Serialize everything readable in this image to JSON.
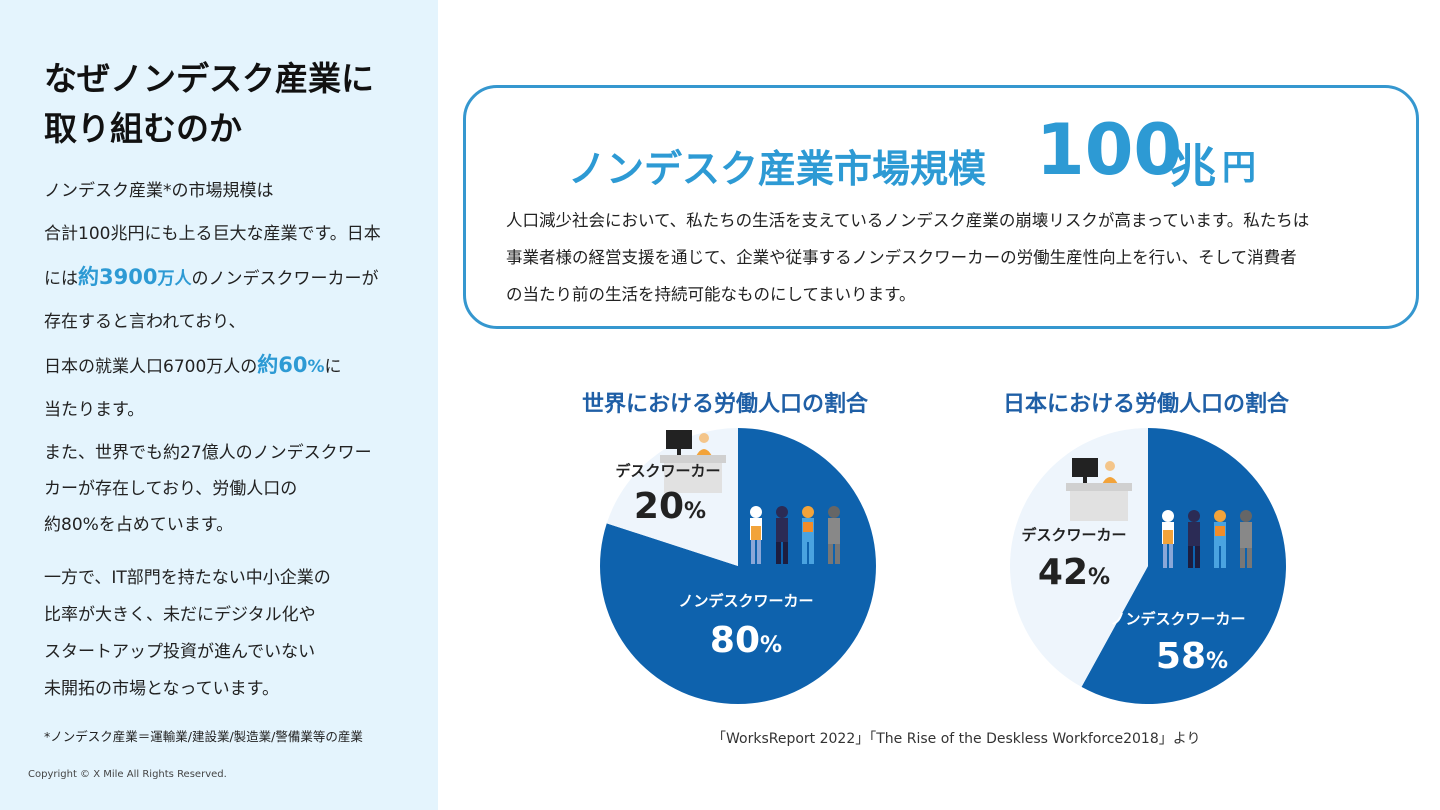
{
  "sidebar": {
    "title_line1": "なぜノンデスク産業に",
    "title_line2": "取り組むのか",
    "p1_lines": [
      {
        "pre": "ノンデスク産業*の市場規模は"
      },
      {
        "pre": "合計100兆円にも上る巨大な産業です。日本"
      },
      {
        "pre": "には",
        "hl": "約3900",
        "hl_small": "万人",
        "post": "のノンデスクワーカーが"
      },
      {
        "pre": "存在すると言われており、"
      },
      {
        "pre": "日本の就業人口6700万人の",
        "hl": "約60",
        "hl_small": "%",
        "post": "に"
      },
      {
        "pre": "当たります。"
      }
    ],
    "p2_lines": [
      "また、世界でも約27億人のノンデスクワー",
      "カーが存在しており、労働人口の",
      "約80%を占めています。"
    ],
    "p3_lines": [
      "一方で、IT部門を持たない中小企業の",
      "比率が大きく、未だにデジタル化や",
      "スタートアップ投資が進んでいない",
      "未開拓の市場となっています。"
    ],
    "footnote": "*ノンデスク産業＝運輸業/建設業/製造業/警備業等の産業",
    "copyright": "Copyright © X Mile All Rights Reserved."
  },
  "market": {
    "title_text": "ノンデスク産業市場規模",
    "title_number": "100",
    "title_unit1": "兆",
    "title_unit2": "円",
    "desc_lines": [
      "人口減少社会において、私たちの生活を支えているノンデスク産業の崩壊リスクが高まっています。私たちは",
      "事業者様の経営支援を通じて、企業や従事するノンデスクワーカーの労働生産性向上を行い、そして消費者",
      "の当たり前の生活を持続可能なものにしてまいります。"
    ]
  },
  "chart_data": [
    {
      "type": "pie",
      "title": "世界における労働人口の割合",
      "slices": [
        {
          "label": "デスクワーカー",
          "value": 20,
          "display": "20",
          "unit": "%",
          "color": "#eef5fc"
        },
        {
          "label": "ノンデスクワーカー",
          "value": 80,
          "display": "80",
          "unit": "%",
          "color": "#0e62ad"
        }
      ]
    },
    {
      "type": "pie",
      "title": "日本における労働人口の割合",
      "slices": [
        {
          "label": "デスクワーカー",
          "value": 42,
          "display": "42",
          "unit": "%",
          "color": "#eef5fc"
        },
        {
          "label": "ノンデスクワーカー",
          "value": 58,
          "display": "58",
          "unit": "%",
          "color": "#0e62ad"
        }
      ]
    }
  ],
  "source": "「WorksReport 2022」「The Rise of the Deskless Workforce2018」より",
  "colors": {
    "accent": "#2d9ad4",
    "navy": "#0e62ad",
    "title_blue": "#1f5fa6"
  }
}
